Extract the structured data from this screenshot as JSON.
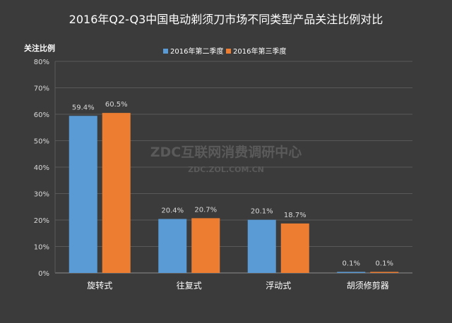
{
  "chart_data": {
    "type": "bar",
    "title": "2016年Q2-Q3中国电动剃须刀市场不同类型产品关注比例对比",
    "ylabel": "关注比例",
    "xlabel": "",
    "categories": [
      "旋转式",
      "往复式",
      "浮动式",
      "胡须修剪器"
    ],
    "series": [
      {
        "name": "2016年第二季度",
        "color": "#5b9bd5",
        "values": [
          59.4,
          20.4,
          20.1,
          0.1
        ],
        "labels": [
          "59.4%",
          "20.4%",
          "20.1%",
          "0.1%"
        ]
      },
      {
        "name": "2016年第三季度",
        "color": "#ed7d31",
        "values": [
          60.5,
          20.7,
          18.7,
          0.1
        ],
        "labels": [
          "60.5%",
          "20.7%",
          "18.7%",
          "0.1%"
        ]
      }
    ],
    "ylim": [
      0,
      80
    ],
    "yticks": [
      0,
      10,
      20,
      30,
      40,
      50,
      60,
      70,
      80
    ],
    "ytick_labels": [
      "0%",
      "10%",
      "20%",
      "30%",
      "40%",
      "50%",
      "60%",
      "70%",
      "80%"
    ],
    "grid": true,
    "legend_position": "top-center"
  },
  "watermark": {
    "line1": "ZDC互联网消费调研中心",
    "line2": "ZDC.ZOL.COM.CN"
  }
}
